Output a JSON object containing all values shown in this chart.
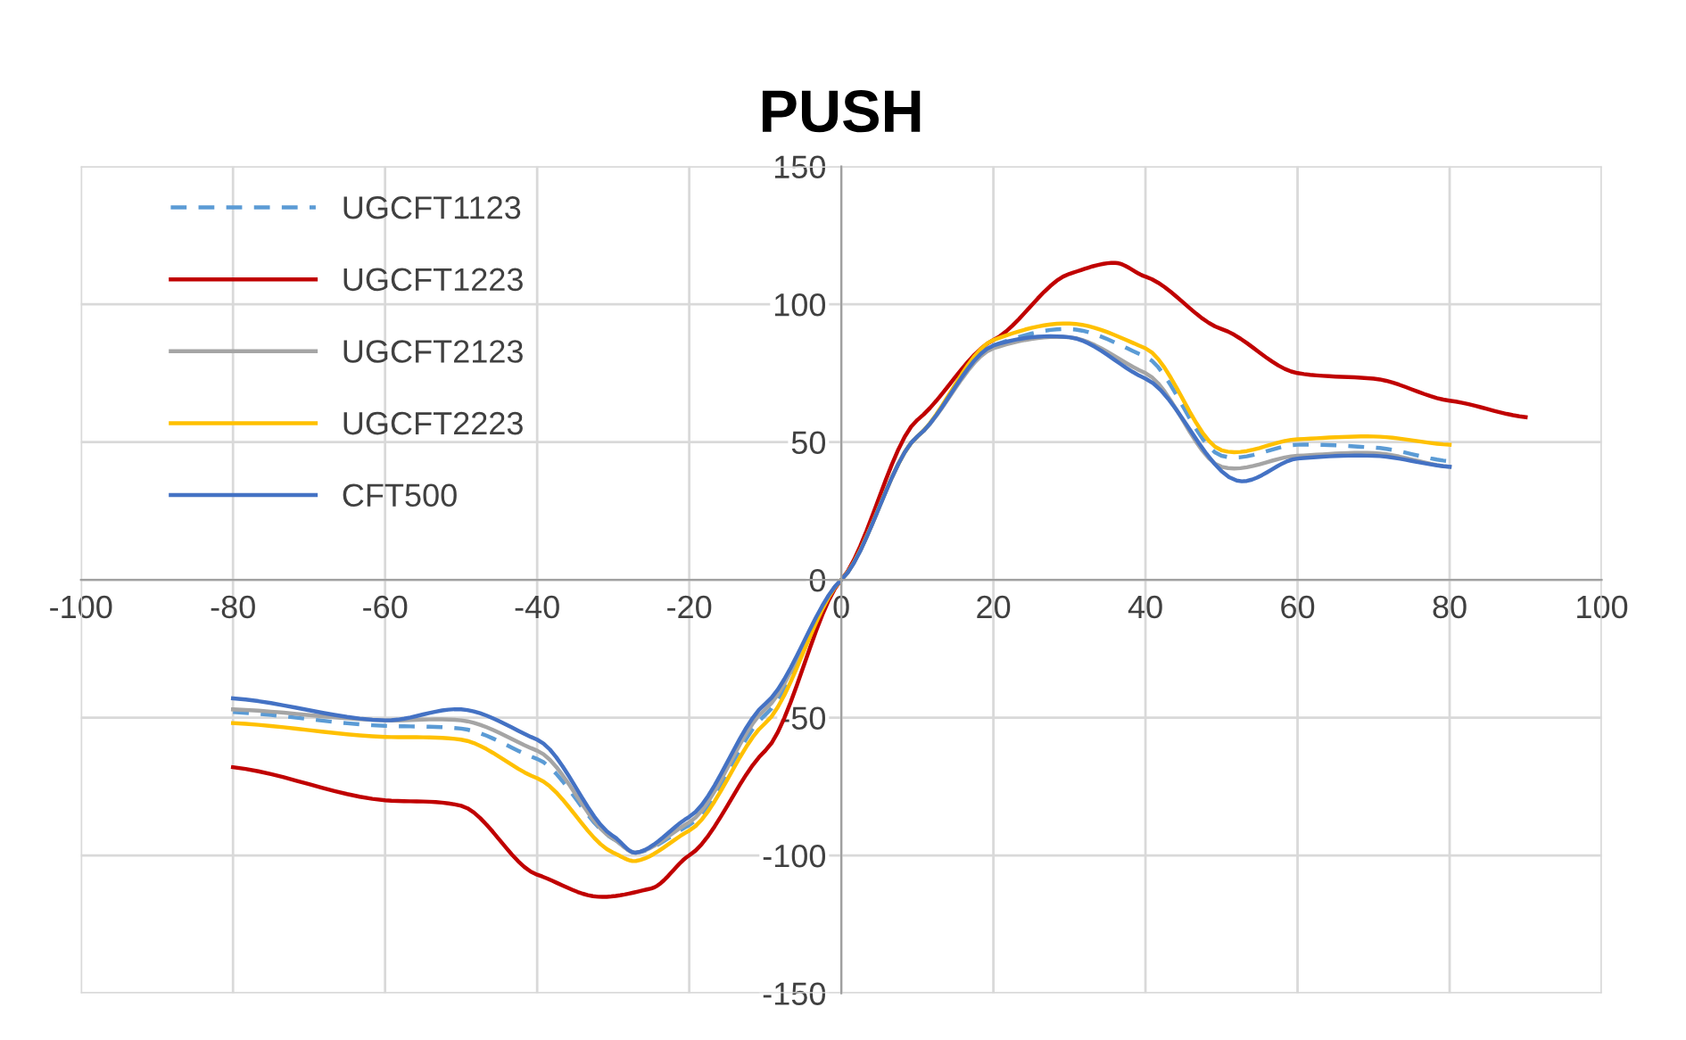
{
  "chart_data": {
    "type": "line",
    "title": "PUSH",
    "xlim": [
      -100,
      100
    ],
    "ylim": [
      -150,
      150
    ],
    "xticks": [
      -100,
      -80,
      -60,
      -40,
      -20,
      0,
      20,
      40,
      60,
      80,
      100
    ],
    "yticks": [
      -150,
      -100,
      -50,
      0,
      50,
      100,
      150
    ],
    "grid": true,
    "legend": "top left",
    "marker": "none",
    "series": [
      {
        "name": "UGCFT1123",
        "color": "#5b9bd5",
        "line_style": "dashed",
        "x": [
          -80,
          -60,
          -50,
          -40,
          -30,
          -27,
          -20,
          -10,
          0,
          10,
          20,
          30,
          40,
          50,
          60,
          70,
          80
        ],
        "values": [
          -48,
          -53,
          -54,
          -65,
          -94,
          -99,
          -89,
          -49,
          0,
          52,
          85,
          91,
          81,
          45,
          49,
          48,
          43
        ]
      },
      {
        "name": "UGCFT1223",
        "color": "#c00000",
        "line_style": "solid",
        "x": [
          -80,
          -60,
          -50,
          -40,
          -32,
          -25,
          -20,
          -10,
          0,
          10,
          20,
          30,
          36,
          40,
          50,
          60,
          70,
          80,
          90
        ],
        "values": [
          -68,
          -80,
          -82,
          -107,
          -115,
          -112,
          -100,
          -62,
          0,
          58,
          87,
          111,
          115,
          110,
          91,
          75,
          73,
          65,
          59
        ]
      },
      {
        "name": "UGCFT2123",
        "color": "#a5a5a5",
        "line_style": "solid",
        "x": [
          -80,
          -60,
          -50,
          -40,
          -30,
          -27,
          -20,
          -10,
          0,
          10,
          20,
          30,
          40,
          50,
          60,
          70,
          80
        ],
        "values": [
          -47,
          -51,
          -51,
          -62,
          -94,
          -99,
          -88,
          -47,
          0,
          52,
          84,
          88,
          75,
          41,
          45,
          46,
          41
        ]
      },
      {
        "name": "UGCFT2223",
        "color": "#ffc000",
        "line_style": "solid",
        "x": [
          -80,
          -60,
          -50,
          -40,
          -30,
          -27,
          -20,
          -10,
          0,
          10,
          20,
          30,
          40,
          50,
          60,
          70,
          80
        ],
        "values": [
          -52,
          -57,
          -58,
          -72,
          -99,
          -102,
          -91,
          -52,
          0,
          52,
          87,
          93,
          84,
          47,
          51,
          52,
          49
        ]
      },
      {
        "name": "CFT500",
        "color": "#4472c4",
        "line_style": "solid",
        "x": [
          -80,
          -60,
          -50,
          -40,
          -30,
          -27,
          -20,
          -10,
          0,
          10,
          20,
          30,
          40,
          52,
          60,
          70,
          80
        ],
        "values": [
          -43,
          -51,
          -47,
          -58,
          -93,
          -99,
          -86,
          -45,
          0,
          52,
          85,
          88,
          73,
          36,
          44,
          45,
          41
        ]
      }
    ]
  }
}
